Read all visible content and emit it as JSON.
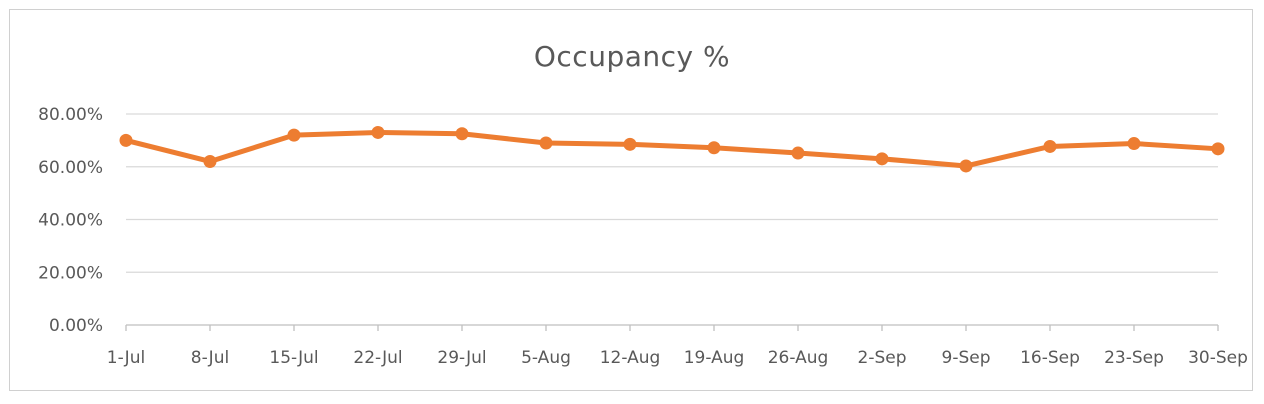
{
  "chart_data": {
    "type": "line",
    "title": "Occupancy %",
    "xlabel": "",
    "ylabel": "",
    "categories": [
      "1-Jul",
      "8-Jul",
      "15-Jul",
      "22-Jul",
      "29-Jul",
      "5-Aug",
      "12-Aug",
      "19-Aug",
      "26-Aug",
      "2-Sep",
      "9-Sep",
      "16-Sep",
      "23-Sep",
      "30-Sep"
    ],
    "series": [
      {
        "values": [
          0.7,
          0.62,
          0.72,
          0.73,
          0.725,
          0.69,
          0.685,
          0.672,
          0.652,
          0.63,
          0.603,
          0.677,
          0.688,
          0.668
        ],
        "color": "#ED7D31"
      }
    ],
    "y_ticks": [
      "0.00%",
      "20.00%",
      "40.00%",
      "60.00%",
      "80.00%"
    ],
    "y_tick_values": [
      0,
      0.2,
      0.4,
      0.6,
      0.8
    ],
    "ylim": [
      0,
      0.8
    ],
    "grid": true,
    "legend": "none",
    "colors": {
      "gridline": "#d9d9d9",
      "axis": "#bfbfbf",
      "text": "#595959"
    }
  }
}
